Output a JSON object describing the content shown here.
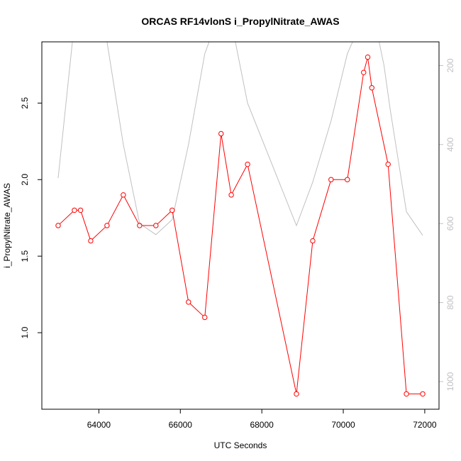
{
  "chart_data": {
    "type": "line",
    "title": "ORCAS RF14vlonS i_PropylNitrate_AWAS",
    "xlabel": "UTC Seconds",
    "ylabel": "i_PropylNitrate_AWAS",
    "xlim": [
      62600,
      72350
    ],
    "ylim": [
      0.5,
      2.9
    ],
    "y2lim": [
      1070,
      140
    ],
    "x_ticks": [
      64000,
      66000,
      68000,
      70000,
      72000
    ],
    "y_ticks": [
      1.0,
      1.5,
      2.0,
      2.5
    ],
    "y2_ticks": [
      200,
      400,
      600,
      800,
      1000
    ],
    "colors": {
      "primary": "#ff0000",
      "secondary": "#c0c0c0",
      "axis": "#000000"
    },
    "series": [
      {
        "axis": "left",
        "style": "line-with-open-circles",
        "points": [
          [
            63000,
            1.7
          ],
          [
            63400,
            1.8
          ],
          [
            63550,
            1.8
          ],
          [
            63800,
            1.6
          ],
          [
            64200,
            1.7
          ],
          [
            64600,
            1.9
          ],
          [
            65000,
            1.7
          ],
          [
            65400,
            1.7
          ],
          [
            65800,
            1.8
          ],
          [
            66200,
            1.2
          ],
          [
            66600,
            1.1
          ],
          [
            67000,
            2.3
          ],
          [
            67250,
            1.9
          ],
          [
            67650,
            2.1
          ],
          [
            68850,
            0.6
          ],
          [
            69250,
            1.6
          ],
          [
            69700,
            2.0
          ],
          [
            70100,
            2.0
          ],
          [
            70500,
            2.7
          ],
          [
            70600,
            2.8
          ],
          [
            70700,
            2.6
          ],
          [
            71100,
            2.1
          ],
          [
            71550,
            0.6
          ],
          [
            71950,
            0.6
          ]
        ]
      },
      {
        "axis": "right",
        "style": "line",
        "points": [
          [
            63000,
            485
          ],
          [
            63350,
            140
          ],
          [
            63600,
            100
          ],
          [
            64000,
            100
          ],
          [
            64200,
            140
          ],
          [
            64600,
            400
          ],
          [
            65000,
            600
          ],
          [
            65400,
            628
          ],
          [
            65800,
            590
          ],
          [
            66200,
            400
          ],
          [
            66600,
            170
          ],
          [
            66850,
            100
          ],
          [
            67150,
            100
          ],
          [
            67350,
            140
          ],
          [
            67650,
            295
          ],
          [
            68850,
            605
          ],
          [
            69250,
            495
          ],
          [
            69700,
            340
          ],
          [
            70100,
            170
          ],
          [
            70400,
            100
          ],
          [
            70800,
            100
          ],
          [
            71000,
            200
          ],
          [
            71150,
            310
          ],
          [
            71550,
            570
          ],
          [
            71950,
            630
          ]
        ]
      }
    ]
  }
}
